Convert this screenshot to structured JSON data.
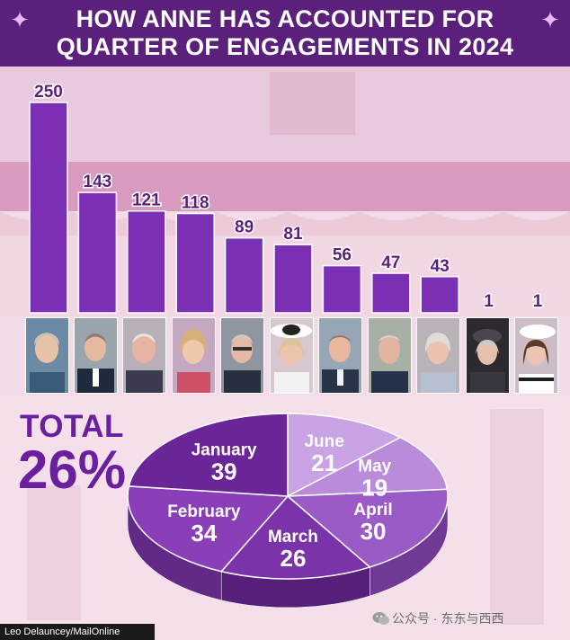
{
  "header": {
    "title_line1": "HOW ANNE HAS ACCOUNTED FOR",
    "title_line2": "QUARTER OF ENGAGEMENTS IN 2024"
  },
  "colors": {
    "header_bg": "#5b1f7c",
    "bar": "#7a2fb5",
    "bar_label": "#5b1f7c",
    "total_text": "#6a1fa0",
    "pie_light": "#c79be0",
    "pie_dark": "#5e1e85"
  },
  "chart_data": [
    {
      "type": "bar",
      "values": [
        250,
        143,
        121,
        118,
        89,
        81,
        56,
        47,
        43,
        1,
        1
      ],
      "ylim": [
        0,
        250
      ],
      "grid": false,
      "legend": "none"
    },
    {
      "type": "pie",
      "categories": [
        "June",
        "May",
        "April",
        "March",
        "February",
        "January"
      ],
      "values": [
        21,
        19,
        30,
        26,
        34,
        39
      ]
    }
  ],
  "total": {
    "label": "TOTAL",
    "value": "26%"
  },
  "credit": "Leo Delauncey/MailOnline",
  "watermark": "公众号 · 东东与西西"
}
